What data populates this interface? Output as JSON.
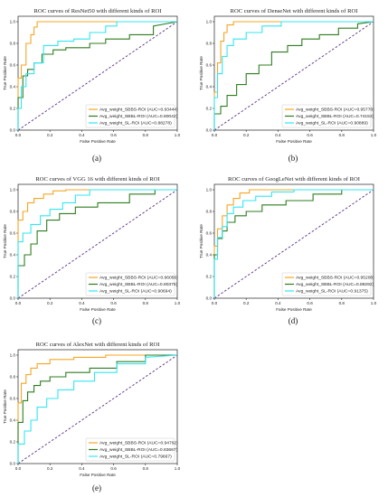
{
  "chart_data": [
    {
      "type": "line",
      "title": "ROC curves of ResNet50 with different kinds of ROI",
      "xlabel": "False Positive Rate",
      "ylabel": "True Positive Rate",
      "xlim": [
        0,
        1
      ],
      "ylim": [
        0,
        1.05
      ],
      "ticks": [
        "0.0",
        "0.2",
        "0.4",
        "0.6",
        "0.8",
        "1.0"
      ],
      "legend_position": "lower-right",
      "caption": "(a)",
      "series": [
        {
          "name": "Avg_weight_SBBS-ROI (AUC=0.93444)",
          "color": "#f5a623",
          "x": [
            0,
            0,
            0.02,
            0.02,
            0.05,
            0.05,
            0.08,
            0.08,
            0.1,
            0.1,
            0.12,
            0.12,
            0.18,
            0.18,
            0.5,
            0.5,
            1.0
          ],
          "y": [
            0,
            0.48,
            0.48,
            0.6,
            0.6,
            0.8,
            0.8,
            0.88,
            0.88,
            0.95,
            0.95,
            1.0,
            1.0,
            1.0,
            1.0,
            1.0,
            1.0
          ]
        },
        {
          "name": "Avg_weight_SBBL-ROI (AUC=0.80042)",
          "color": "#2e7d1f",
          "x": [
            0,
            0,
            0.03,
            0.03,
            0.06,
            0.06,
            0.1,
            0.1,
            0.15,
            0.15,
            0.22,
            0.22,
            0.3,
            0.3,
            0.45,
            0.45,
            0.55,
            0.55,
            0.7,
            0.7,
            0.85,
            0.85,
            1.0
          ],
          "y": [
            0,
            0.3,
            0.3,
            0.5,
            0.5,
            0.56,
            0.56,
            0.62,
            0.62,
            0.7,
            0.7,
            0.74,
            0.74,
            0.76,
            0.76,
            0.8,
            0.8,
            0.84,
            0.84,
            0.88,
            0.88,
            0.96,
            1.0
          ]
        },
        {
          "name": "Avg_weight_SL-ROI (AUC=0.88278)",
          "color": "#33e6f2",
          "x": [
            0,
            0,
            0.02,
            0.02,
            0.05,
            0.05,
            0.1,
            0.1,
            0.16,
            0.16,
            0.25,
            0.25,
            0.35,
            0.35,
            0.45,
            0.45,
            0.55,
            0.55,
            0.62,
            0.62,
            1.0
          ],
          "y": [
            0,
            0.2,
            0.2,
            0.4,
            0.4,
            0.52,
            0.52,
            0.62,
            0.62,
            0.78,
            0.78,
            0.82,
            0.82,
            0.84,
            0.84,
            0.9,
            0.9,
            0.96,
            0.96,
            1.0,
            1.0
          ]
        }
      ]
    },
    {
      "type": "line",
      "title": "ROC curves of DenseNet with different kinds of ROI",
      "xlabel": "False Positive Rate",
      "ylabel": "True Positive Rate",
      "xlim": [
        0,
        1
      ],
      "ylim": [
        0,
        1.05
      ],
      "ticks": [
        "0.0",
        "0.2",
        "0.4",
        "0.6",
        "0.8",
        "1.0"
      ],
      "legend_position": "lower-right",
      "caption": "(b)",
      "series": [
        {
          "name": "Avg_weight_SBBS-ROI (AUC=0.95778)",
          "color": "#f5a623",
          "x": [
            0,
            0,
            0.02,
            0.02,
            0.04,
            0.04,
            0.06,
            0.06,
            0.08,
            0.08,
            0.12,
            0.12,
            1.0
          ],
          "y": [
            0,
            0.35,
            0.35,
            0.62,
            0.62,
            0.82,
            0.82,
            0.9,
            0.9,
            0.97,
            0.97,
            1.0,
            1.0
          ]
        },
        {
          "name": "Avg_weight_SBBL-ROI (AUC=0.74153)",
          "color": "#2e7d1f",
          "x": [
            0,
            0,
            0.04,
            0.04,
            0.08,
            0.08,
            0.14,
            0.14,
            0.2,
            0.2,
            0.28,
            0.28,
            0.36,
            0.36,
            0.46,
            0.46,
            0.55,
            0.55,
            0.66,
            0.66,
            0.78,
            0.78,
            0.9,
            0.9,
            1.0
          ],
          "y": [
            0,
            0.15,
            0.15,
            0.22,
            0.22,
            0.32,
            0.32,
            0.42,
            0.42,
            0.52,
            0.52,
            0.6,
            0.6,
            0.72,
            0.72,
            0.78,
            0.78,
            0.84,
            0.84,
            0.88,
            0.88,
            0.94,
            0.94,
            0.98,
            1.0
          ]
        },
        {
          "name": "Avg_weight_SL-ROI (AUC=0.90889)",
          "color": "#33e6f2",
          "x": [
            0,
            0,
            0.02,
            0.02,
            0.05,
            0.05,
            0.08,
            0.08,
            0.12,
            0.12,
            0.2,
            0.2,
            0.3,
            0.3,
            0.42,
            0.42,
            1.0
          ],
          "y": [
            0,
            0.3,
            0.3,
            0.52,
            0.52,
            0.68,
            0.68,
            0.78,
            0.78,
            0.84,
            0.84,
            0.9,
            0.9,
            0.96,
            0.96,
            1.0,
            1.0
          ]
        }
      ]
    },
    {
      "type": "line",
      "title": "ROC curves of VGG 16 with different kinds of ROI",
      "xlabel": "False Positive Rate",
      "ylabel": "True Positive Rate",
      "xlim": [
        0,
        1
      ],
      "ylim": [
        0,
        1.05
      ],
      "ticks": [
        "0.0",
        "0.2",
        "0.4",
        "0.6",
        "0.8",
        "1.0"
      ],
      "legend_position": "lower-right",
      "caption": "(c)",
      "series": [
        {
          "name": "Avg_weight_SBBS-ROI (AUC=0.96056)",
          "color": "#f5a623",
          "x": [
            0,
            0,
            0.03,
            0.03,
            0.06,
            0.06,
            0.1,
            0.1,
            0.16,
            0.16,
            0.22,
            0.22,
            0.3,
            0.3,
            1.0
          ],
          "y": [
            0,
            0.72,
            0.72,
            0.8,
            0.8,
            0.88,
            0.88,
            0.92,
            0.92,
            0.96,
            0.96,
            0.99,
            0.99,
            1.0,
            1.0
          ]
        },
        {
          "name": "Avg_weight_SBBL-ROI (AUC=0.80375)",
          "color": "#2e7d1f",
          "x": [
            0,
            0,
            0.04,
            0.04,
            0.08,
            0.08,
            0.12,
            0.12,
            0.18,
            0.18,
            0.26,
            0.26,
            0.36,
            0.36,
            0.5,
            0.5,
            0.7,
            0.7,
            0.86,
            0.86,
            1.0
          ],
          "y": [
            0,
            0.3,
            0.3,
            0.4,
            0.4,
            0.5,
            0.5,
            0.62,
            0.62,
            0.72,
            0.72,
            0.78,
            0.78,
            0.84,
            0.84,
            0.88,
            0.88,
            0.96,
            0.96,
            1.0,
            1.0
          ]
        },
        {
          "name": "Avg_weight_SL-ROI (AUC=0.90694)",
          "color": "#33e6f2",
          "x": [
            0,
            0,
            0.03,
            0.03,
            0.08,
            0.08,
            0.14,
            0.14,
            0.2,
            0.2,
            0.28,
            0.28,
            0.36,
            0.36,
            0.45,
            0.45,
            1.0
          ],
          "y": [
            0,
            0.52,
            0.52,
            0.6,
            0.6,
            0.68,
            0.68,
            0.76,
            0.76,
            0.82,
            0.82,
            0.88,
            0.88,
            0.95,
            0.95,
            1.0,
            1.0
          ]
        }
      ]
    },
    {
      "type": "line",
      "title": "ROC curves of GoogLeNet with different kinds of ROI",
      "xlabel": "False Positive Rate",
      "ylabel": "True Positive Rate",
      "xlim": [
        0,
        1
      ],
      "ylim": [
        0,
        1.05
      ],
      "ticks": [
        "0.0",
        "0.2",
        "0.4",
        "0.6",
        "0.8",
        "1.0"
      ],
      "legend_position": "lower-right",
      "caption": "(d)",
      "series": [
        {
          "name": "Avg_weight_SBBS-ROI (AUC=0.95208)",
          "color": "#f5a623",
          "x": [
            0,
            0,
            0.02,
            0.02,
            0.05,
            0.05,
            0.08,
            0.08,
            0.12,
            0.12,
            0.16,
            0.16,
            0.22,
            0.22,
            1.0
          ],
          "y": [
            0,
            0.48,
            0.48,
            0.64,
            0.64,
            0.76,
            0.76,
            0.86,
            0.86,
            0.92,
            0.92,
            0.97,
            0.97,
            1.0,
            1.0
          ]
        },
        {
          "name": "Avg_weight_SBBL-ROI (AUC=0.88292)",
          "color": "#2e7d1f",
          "x": [
            0,
            0,
            0.02,
            0.02,
            0.05,
            0.05,
            0.08,
            0.08,
            0.13,
            0.13,
            0.2,
            0.2,
            0.3,
            0.3,
            0.45,
            0.45,
            0.62,
            0.62,
            0.8,
            0.8,
            1.0
          ],
          "y": [
            0,
            0.4,
            0.4,
            0.55,
            0.55,
            0.62,
            0.62,
            0.7,
            0.7,
            0.76,
            0.76,
            0.8,
            0.8,
            0.86,
            0.86,
            0.9,
            0.9,
            0.96,
            0.96,
            1.0,
            1.0
          ]
        },
        {
          "name": "Avg_weight_SL-ROI (AUC=0.91375)",
          "color": "#33e6f2",
          "x": [
            0,
            0,
            0.02,
            0.02,
            0.05,
            0.05,
            0.08,
            0.08,
            0.12,
            0.12,
            0.18,
            0.18,
            0.26,
            0.26,
            0.36,
            0.36,
            0.5,
            0.5,
            1.0
          ],
          "y": [
            0,
            0.36,
            0.36,
            0.56,
            0.56,
            0.66,
            0.66,
            0.78,
            0.78,
            0.84,
            0.84,
            0.9,
            0.9,
            0.94,
            0.94,
            0.98,
            0.98,
            1.0,
            1.0
          ]
        }
      ]
    },
    {
      "type": "line",
      "title": "ROC curves of AlexNet with different kinds of ROI",
      "xlabel": "False Positive Rate",
      "ylabel": "True Positive Rate",
      "xlim": [
        0,
        1
      ],
      "ylim": [
        0,
        1.05
      ],
      "ticks": [
        "0.0",
        "0.2",
        "0.4",
        "0.6",
        "0.8",
        "1.0"
      ],
      "legend_position": "lower-right",
      "caption": "(e)",
      "series": [
        {
          "name": "Avg_weight_SBBS-ROI (AUC=0.94792)",
          "color": "#f5a623",
          "x": [
            0,
            0,
            0.02,
            0.02,
            0.05,
            0.05,
            0.08,
            0.08,
            0.12,
            0.12,
            0.2,
            0.2,
            0.35,
            0.35,
            0.55,
            0.55,
            1.0
          ],
          "y": [
            0,
            0.56,
            0.56,
            0.74,
            0.74,
            0.82,
            0.82,
            0.88,
            0.88,
            0.92,
            0.92,
            0.96,
            0.96,
            0.98,
            0.98,
            1.0,
            1.0
          ]
        },
        {
          "name": "Avg_weight_SBBL-ROI (AUC=0.83667)",
          "color": "#2e7d1f",
          "x": [
            0,
            0,
            0.03,
            0.03,
            0.06,
            0.06,
            0.1,
            0.1,
            0.14,
            0.14,
            0.2,
            0.2,
            0.3,
            0.3,
            0.45,
            0.45,
            0.62,
            0.62,
            0.8,
            0.8,
            1.0
          ],
          "y": [
            0,
            0.38,
            0.38,
            0.58,
            0.58,
            0.66,
            0.66,
            0.72,
            0.72,
            0.76,
            0.76,
            0.8,
            0.8,
            0.84,
            0.84,
            0.88,
            0.88,
            0.94,
            0.94,
            1.0,
            1.0
          ]
        },
        {
          "name": "Avg_weight_SL-ROI (AUC=0.79667)",
          "color": "#33e6f2",
          "x": [
            0,
            0,
            0.04,
            0.04,
            0.08,
            0.08,
            0.12,
            0.12,
            0.18,
            0.18,
            0.25,
            0.25,
            0.35,
            0.35,
            0.48,
            0.48,
            0.62,
            0.62,
            0.8,
            0.8,
            1.0
          ],
          "y": [
            0,
            0.18,
            0.18,
            0.3,
            0.3,
            0.4,
            0.4,
            0.52,
            0.52,
            0.6,
            0.6,
            0.68,
            0.68,
            0.76,
            0.76,
            0.84,
            0.84,
            0.92,
            0.92,
            0.98,
            1.0
          ]
        }
      ]
    }
  ]
}
